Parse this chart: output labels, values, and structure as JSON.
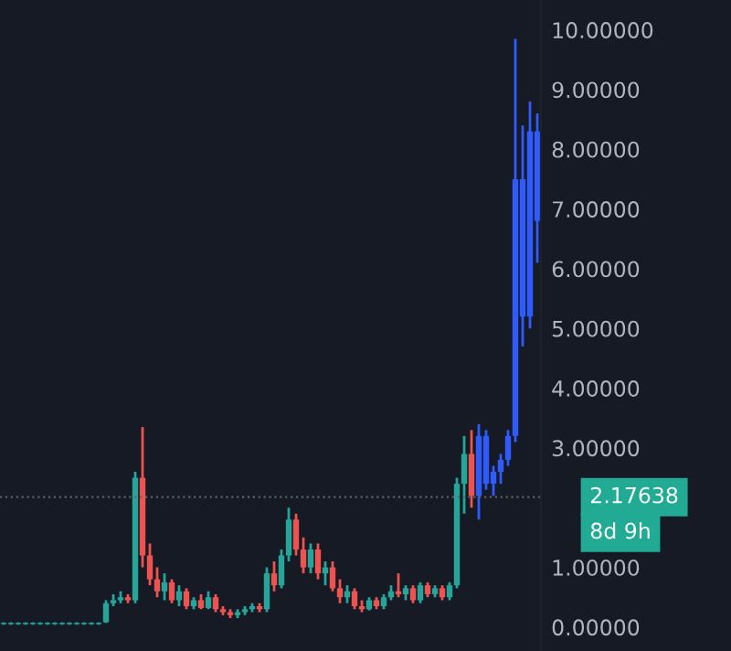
{
  "chart_data": {
    "type": "candlestick",
    "categories": [
      null,
      null,
      null,
      null,
      null,
      null,
      null,
      null,
      null,
      null,
      null,
      null,
      null,
      null,
      null,
      null,
      null,
      null,
      null,
      null,
      null,
      null,
      null,
      null,
      null,
      null,
      null,
      null,
      null,
      null,
      null,
      null,
      null,
      null,
      null,
      null,
      null,
      null,
      null,
      null,
      null,
      null,
      null,
      null,
      null,
      null,
      null,
      null,
      null,
      null,
      null,
      null,
      null,
      null,
      null,
      null,
      null,
      null,
      null,
      null,
      null,
      null,
      null,
      null,
      null,
      null,
      null,
      null,
      null,
      null,
      null,
      null,
      null,
      null
    ],
    "ohlc": [
      [
        0.05,
        0.08,
        0.04,
        0.07
      ],
      [
        0.05,
        0.08,
        0.04,
        0.07
      ],
      [
        0.05,
        0.08,
        0.04,
        0.07
      ],
      [
        0.05,
        0.08,
        0.04,
        0.07
      ],
      [
        0.05,
        0.08,
        0.04,
        0.07
      ],
      [
        0.05,
        0.08,
        0.04,
        0.07
      ],
      [
        0.05,
        0.08,
        0.04,
        0.07
      ],
      [
        0.05,
        0.08,
        0.04,
        0.07
      ],
      [
        0.05,
        0.08,
        0.04,
        0.07
      ],
      [
        0.05,
        0.08,
        0.04,
        0.07
      ],
      [
        0.05,
        0.08,
        0.04,
        0.07
      ],
      [
        0.05,
        0.08,
        0.04,
        0.07
      ],
      [
        0.05,
        0.08,
        0.04,
        0.07
      ],
      [
        0.05,
        0.08,
        0.04,
        0.07
      ],
      [
        0.08,
        0.45,
        0.07,
        0.4
      ],
      [
        0.4,
        0.55,
        0.35,
        0.45
      ],
      [
        0.45,
        0.6,
        0.4,
        0.5
      ],
      [
        0.5,
        0.55,
        0.4,
        0.45
      ],
      [
        0.45,
        2.6,
        0.4,
        2.5
      ],
      [
        2.5,
        3.35,
        1.0,
        1.2
      ],
      [
        1.2,
        1.4,
        0.7,
        0.8
      ],
      [
        0.8,
        1.0,
        0.5,
        0.6
      ],
      [
        0.6,
        0.9,
        0.45,
        0.75
      ],
      [
        0.75,
        0.8,
        0.4,
        0.45
      ],
      [
        0.45,
        0.7,
        0.35,
        0.6
      ],
      [
        0.6,
        0.65,
        0.3,
        0.35
      ],
      [
        0.35,
        0.5,
        0.3,
        0.45
      ],
      [
        0.45,
        0.55,
        0.3,
        0.32
      ],
      [
        0.32,
        0.6,
        0.3,
        0.5
      ],
      [
        0.5,
        0.55,
        0.25,
        0.3
      ],
      [
        0.3,
        0.35,
        0.2,
        0.25
      ],
      [
        0.25,
        0.3,
        0.15,
        0.2
      ],
      [
        0.2,
        0.3,
        0.15,
        0.25
      ],
      [
        0.25,
        0.35,
        0.2,
        0.3
      ],
      [
        0.3,
        0.4,
        0.25,
        0.35
      ],
      [
        0.35,
        0.4,
        0.25,
        0.3
      ],
      [
        0.3,
        1.0,
        0.25,
        0.9
      ],
      [
        0.9,
        1.1,
        0.6,
        0.7
      ],
      [
        0.7,
        1.3,
        0.65,
        1.2
      ],
      [
        1.2,
        2.0,
        1.1,
        1.8
      ],
      [
        1.8,
        1.9,
        1.2,
        1.3
      ],
      [
        1.3,
        1.5,
        0.9,
        1.0
      ],
      [
        1.0,
        1.4,
        0.9,
        1.3
      ],
      [
        1.3,
        1.4,
        0.8,
        0.9
      ],
      [
        0.9,
        1.1,
        0.7,
        1.0
      ],
      [
        1.0,
        1.1,
        0.6,
        0.65
      ],
      [
        0.65,
        0.8,
        0.4,
        0.5
      ],
      [
        0.5,
        0.7,
        0.4,
        0.6
      ],
      [
        0.6,
        0.65,
        0.3,
        0.35
      ],
      [
        0.35,
        0.45,
        0.25,
        0.3
      ],
      [
        0.3,
        0.5,
        0.28,
        0.45
      ],
      [
        0.45,
        0.5,
        0.3,
        0.35
      ],
      [
        0.35,
        0.55,
        0.3,
        0.5
      ],
      [
        0.5,
        0.7,
        0.45,
        0.6
      ],
      [
        0.6,
        0.9,
        0.5,
        0.55
      ],
      [
        0.55,
        0.7,
        0.45,
        0.65
      ],
      [
        0.65,
        0.7,
        0.4,
        0.45
      ],
      [
        0.45,
        0.75,
        0.4,
        0.7
      ],
      [
        0.7,
        0.75,
        0.5,
        0.55
      ],
      [
        0.55,
        0.7,
        0.5,
        0.65
      ],
      [
        0.65,
        0.7,
        0.45,
        0.5
      ],
      [
        0.5,
        0.75,
        0.45,
        0.7
      ],
      [
        0.7,
        2.5,
        0.65,
        2.4
      ],
      [
        2.4,
        3.2,
        1.9,
        2.9
      ],
      [
        2.9,
        3.3,
        2.0,
        2.2
      ],
      [
        2.2,
        3.4,
        1.8,
        3.2
      ],
      [
        3.2,
        3.3,
        2.3,
        2.4
      ],
      [
        2.4,
        2.7,
        2.2,
        2.6
      ],
      [
        2.6,
        2.9,
        2.4,
        2.8
      ],
      [
        2.8,
        3.3,
        2.7,
        3.2
      ],
      [
        3.2,
        9.85,
        3.1,
        7.5
      ],
      [
        7.5,
        8.4,
        4.7,
        5.2
      ],
      [
        5.2,
        8.8,
        5.0,
        8.3
      ],
      [
        8.3,
        8.6,
        6.1,
        6.8
      ]
    ],
    "colors": [
      "#26a69a",
      "#26a69a",
      "#26a69a",
      "#26a69a",
      "#26a69a",
      "#26a69a",
      "#26a69a",
      "#26a69a",
      "#26a69a",
      "#26a69a",
      "#26a69a",
      "#26a69a",
      "#26a69a",
      "#26a69a",
      "#26a69a",
      "#26a69a",
      "#26a69a",
      "#ef5350",
      "#26a69a",
      "#ef5350",
      "#ef5350",
      "#ef5350",
      "#26a69a",
      "#ef5350",
      "#26a69a",
      "#ef5350",
      "#26a69a",
      "#ef5350",
      "#26a69a",
      "#ef5350",
      "#ef5350",
      "#ef5350",
      "#26a69a",
      "#26a69a",
      "#26a69a",
      "#ef5350",
      "#26a69a",
      "#ef5350",
      "#26a69a",
      "#26a69a",
      "#ef5350",
      "#ef5350",
      "#26a69a",
      "#ef5350",
      "#26a69a",
      "#ef5350",
      "#ef5350",
      "#26a69a",
      "#ef5350",
      "#ef5350",
      "#26a69a",
      "#ef5350",
      "#26a69a",
      "#26a69a",
      "#ef5350",
      "#26a69a",
      "#ef5350",
      "#26a69a",
      "#ef5350",
      "#26a69a",
      "#ef5350",
      "#26a69a",
      "#26a69a",
      "#26a69a",
      "#ef5350",
      "#2f5bff",
      "#2f5bff",
      "#2f5bff",
      "#2f5bff",
      "#2f5bff",
      "#2f5bff",
      "#2f5bff",
      "#2f5bff",
      "#2f5bff"
    ],
    "ylim": [
      -0.4,
      10.5
    ],
    "yticks": [
      {
        "value": 0,
        "label": "0.00000"
      },
      {
        "value": 1,
        "label": "1.00000"
      },
      {
        "value": 3,
        "label": "3.00000"
      },
      {
        "value": 4,
        "label": "4.00000"
      },
      {
        "value": 5,
        "label": "5.00000"
      },
      {
        "value": 6,
        "label": "6.00000"
      },
      {
        "value": 7,
        "label": "7.00000"
      },
      {
        "value": 8,
        "label": "8.00000"
      },
      {
        "value": 9,
        "label": "9.00000"
      },
      {
        "value": 10,
        "label": "10.00000"
      }
    ],
    "tick_labels": "y",
    "ref_lines": [
      {
        "axis": "y",
        "value": 2.17638,
        "label": "2.17638",
        "color": "#5d606b",
        "line_style": "dotted"
      }
    ],
    "annotations": [
      "8d 9h"
    ],
    "grid": false
  }
}
